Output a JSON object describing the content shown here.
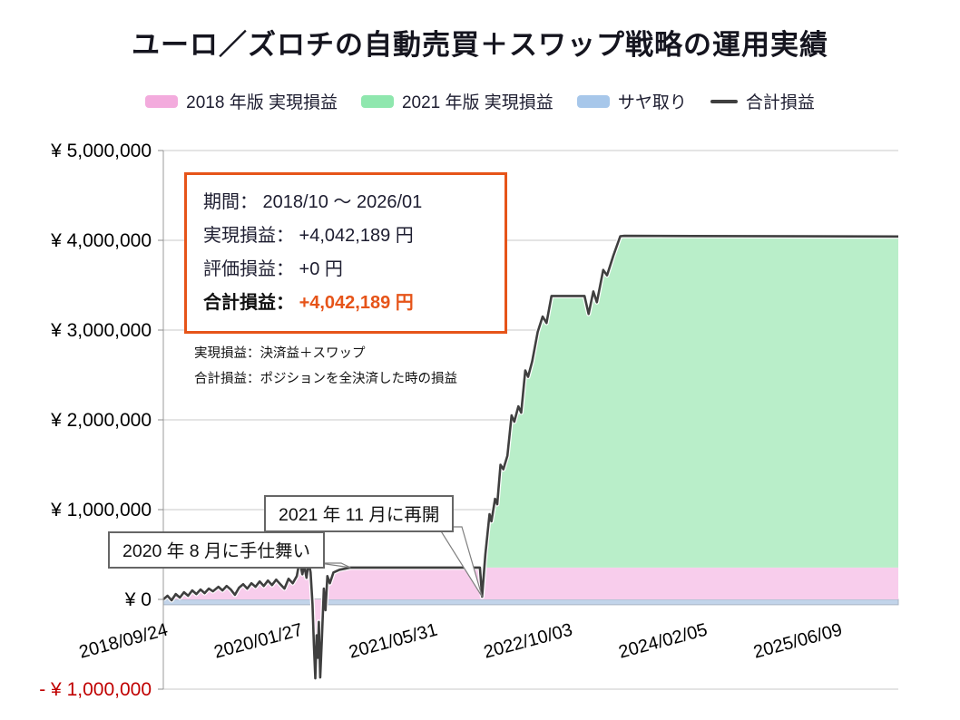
{
  "title": "ユーロ／ズロチの自動売買＋スワップ戦略の運用実績",
  "legend": {
    "items": [
      {
        "label": "2018 年版 実現損益",
        "color": "#f3abdd",
        "type": "swatch"
      },
      {
        "label": "2021 年版 実現損益",
        "color": "#8fe7ae",
        "type": "swatch"
      },
      {
        "label": "サヤ取り",
        "color": "#a7c7ea",
        "type": "swatch"
      },
      {
        "label": "合計損益",
        "color": "#3f3f3f",
        "type": "line"
      }
    ]
  },
  "info_box": {
    "line1": "期間： 2018/10 ～ 2026/01",
    "line2": "実現損益： +4,042,189 円",
    "line3": "評価損益： +0 円",
    "total_label": "合計損益：",
    "total_value": "+4,042,189 円"
  },
  "notes": {
    "line1": "実現損益：決済益＋スワップ",
    "line2": "合計損益：ポジションを全決済した時の損益"
  },
  "chart_data": {
    "type": "area",
    "title": "ユーロ／ズロチの自動売買＋スワップ戦略の運用実績",
    "x_axis": "date (days from 2018/09/24)",
    "x_max_day": 2670,
    "ylim": [
      -1000000,
      5000000
    ],
    "grid": true,
    "legend_position": "top",
    "x_ticks": [
      {
        "day": 0,
        "label": "2018/09/24"
      },
      {
        "day": 490,
        "label": "2020/01/27"
      },
      {
        "day": 980,
        "label": "2021/05/31"
      },
      {
        "day": 1470,
        "label": "2022/10/03"
      },
      {
        "day": 1960,
        "label": "2024/02/05"
      },
      {
        "day": 2450,
        "label": "2025/06/09"
      }
    ],
    "y_ticks": [
      {
        "value": 5000000,
        "label": "¥ 5,000,000"
      },
      {
        "value": 4000000,
        "label": "¥ 4,000,000"
      },
      {
        "value": 3000000,
        "label": "¥ 3,000,000"
      },
      {
        "value": 2000000,
        "label": "¥ 2,000,000"
      },
      {
        "value": 1000000,
        "label": "¥ 1,000,000"
      },
      {
        "value": 0,
        "label": "¥ 0"
      },
      {
        "value": -1000000,
        "label": "- ¥ 1,000,000",
        "color": "#c00000"
      }
    ],
    "series": [
      {
        "id": "saya",
        "name": "サヤ取り",
        "type": "area",
        "color": "#c2d4ea",
        "base": 0,
        "points": [
          [
            0,
            -60000
          ],
          [
            2670,
            -60000
          ]
        ]
      },
      {
        "id": "realized2018",
        "name": "2018年版 実現損益",
        "type": "area",
        "color": "#f8cdec",
        "base": 0,
        "points": [
          [
            0,
            0
          ],
          [
            15,
            40000
          ],
          [
            30,
            -10000
          ],
          [
            45,
            60000
          ],
          [
            60,
            20000
          ],
          [
            75,
            80000
          ],
          [
            90,
            40000
          ],
          [
            105,
            100000
          ],
          [
            120,
            60000
          ],
          [
            135,
            110000
          ],
          [
            150,
            70000
          ],
          [
            165,
            120000
          ],
          [
            180,
            90000
          ],
          [
            200,
            140000
          ],
          [
            215,
            100000
          ],
          [
            230,
            150000
          ],
          [
            245,
            110000
          ],
          [
            260,
            50000
          ],
          [
            275,
            130000
          ],
          [
            290,
            170000
          ],
          [
            305,
            120000
          ],
          [
            320,
            180000
          ],
          [
            335,
            140000
          ],
          [
            350,
            200000
          ],
          [
            365,
            150000
          ],
          [
            380,
            210000
          ],
          [
            395,
            160000
          ],
          [
            410,
            220000
          ],
          [
            425,
            170000
          ],
          [
            440,
            120000
          ],
          [
            455,
            230000
          ],
          [
            470,
            180000
          ],
          [
            485,
            260000
          ],
          [
            495,
            430000
          ],
          [
            505,
            280000
          ],
          [
            512,
            380000
          ],
          [
            520,
            240000
          ],
          [
            528,
            420000
          ],
          [
            535,
            300000
          ],
          [
            542,
            -50000
          ],
          [
            547,
            -500000
          ],
          [
            552,
            -880000
          ],
          [
            557,
            -400000
          ],
          [
            561,
            -650000
          ],
          [
            565,
            -250000
          ],
          [
            570,
            -870000
          ],
          [
            576,
            -450000
          ],
          [
            583,
            120000
          ],
          [
            589,
            -120000
          ],
          [
            596,
            260000
          ],
          [
            605,
            180000
          ],
          [
            618,
            300000
          ],
          [
            640,
            330000
          ],
          [
            680,
            355000
          ],
          [
            2670,
            355000
          ]
        ]
      },
      {
        "id": "realized2021",
        "name": "2021年版 実現損益",
        "type": "area",
        "color": "#b9eec9",
        "base": 355000,
        "points": [
          [
            1162,
            355000
          ],
          [
            1170,
            500000
          ],
          [
            1185,
            950000
          ],
          [
            1192,
            870000
          ],
          [
            1205,
            1120000
          ],
          [
            1213,
            1060000
          ],
          [
            1225,
            1500000
          ],
          [
            1235,
            1450000
          ],
          [
            1250,
            1600000
          ],
          [
            1265,
            2050000
          ],
          [
            1275,
            1980000
          ],
          [
            1290,
            2150000
          ],
          [
            1300,
            2080000
          ],
          [
            1315,
            2550000
          ],
          [
            1325,
            2480000
          ],
          [
            1340,
            2650000
          ],
          [
            1360,
            2980000
          ],
          [
            1378,
            3150000
          ],
          [
            1392,
            3080000
          ],
          [
            1410,
            3380000
          ],
          [
            1530,
            3380000
          ],
          [
            1545,
            3180000
          ],
          [
            1562,
            3430000
          ],
          [
            1575,
            3310000
          ],
          [
            1598,
            3670000
          ],
          [
            1612,
            3610000
          ],
          [
            1635,
            3830000
          ],
          [
            1660,
            4045000
          ],
          [
            1675,
            4050000
          ],
          [
            2670,
            4042189
          ]
        ]
      },
      {
        "id": "total",
        "name": "合計損益",
        "type": "line",
        "color": "#3f3f3f",
        "points": [
          [
            0,
            0
          ],
          [
            15,
            40000
          ],
          [
            30,
            -10000
          ],
          [
            45,
            60000
          ],
          [
            60,
            20000
          ],
          [
            75,
            80000
          ],
          [
            90,
            40000
          ],
          [
            105,
            100000
          ],
          [
            120,
            60000
          ],
          [
            135,
            110000
          ],
          [
            150,
            70000
          ],
          [
            165,
            120000
          ],
          [
            180,
            90000
          ],
          [
            200,
            140000
          ],
          [
            215,
            100000
          ],
          [
            230,
            150000
          ],
          [
            245,
            110000
          ],
          [
            260,
            50000
          ],
          [
            275,
            130000
          ],
          [
            290,
            170000
          ],
          [
            305,
            120000
          ],
          [
            320,
            180000
          ],
          [
            335,
            140000
          ],
          [
            350,
            200000
          ],
          [
            365,
            150000
          ],
          [
            380,
            210000
          ],
          [
            395,
            160000
          ],
          [
            410,
            220000
          ],
          [
            425,
            170000
          ],
          [
            440,
            120000
          ],
          [
            455,
            230000
          ],
          [
            470,
            180000
          ],
          [
            485,
            260000
          ],
          [
            495,
            430000
          ],
          [
            505,
            280000
          ],
          [
            512,
            380000
          ],
          [
            520,
            240000
          ],
          [
            528,
            420000
          ],
          [
            535,
            300000
          ],
          [
            542,
            -50000
          ],
          [
            547,
            -500000
          ],
          [
            552,
            -880000
          ],
          [
            557,
            -400000
          ],
          [
            561,
            -650000
          ],
          [
            565,
            -250000
          ],
          [
            570,
            -870000
          ],
          [
            576,
            -450000
          ],
          [
            583,
            120000
          ],
          [
            589,
            -120000
          ],
          [
            596,
            260000
          ],
          [
            605,
            180000
          ],
          [
            618,
            300000
          ],
          [
            640,
            330000
          ],
          [
            680,
            355000
          ],
          [
            1150,
            355000
          ],
          [
            1158,
            30000
          ],
          [
            1170,
            500000
          ],
          [
            1185,
            950000
          ],
          [
            1192,
            870000
          ],
          [
            1205,
            1120000
          ],
          [
            1213,
            1060000
          ],
          [
            1225,
            1500000
          ],
          [
            1235,
            1450000
          ],
          [
            1250,
            1600000
          ],
          [
            1265,
            2050000
          ],
          [
            1275,
            1980000
          ],
          [
            1290,
            2150000
          ],
          [
            1300,
            2080000
          ],
          [
            1315,
            2550000
          ],
          [
            1325,
            2480000
          ],
          [
            1340,
            2650000
          ],
          [
            1360,
            2980000
          ],
          [
            1378,
            3150000
          ],
          [
            1392,
            3080000
          ],
          [
            1410,
            3380000
          ],
          [
            1530,
            3380000
          ],
          [
            1545,
            3180000
          ],
          [
            1562,
            3430000
          ],
          [
            1575,
            3310000
          ],
          [
            1598,
            3670000
          ],
          [
            1612,
            3610000
          ],
          [
            1635,
            3830000
          ],
          [
            1660,
            4045000
          ],
          [
            1675,
            4050000
          ],
          [
            2670,
            4042189
          ]
        ]
      }
    ],
    "annotations": [
      {
        "text": "2020 年 8 月に手仕舞い",
        "target_day": 680,
        "target_value": 355000
      },
      {
        "text": "2021 年 11 月に再開",
        "target_day": 1158,
        "target_value": 30000
      }
    ]
  }
}
